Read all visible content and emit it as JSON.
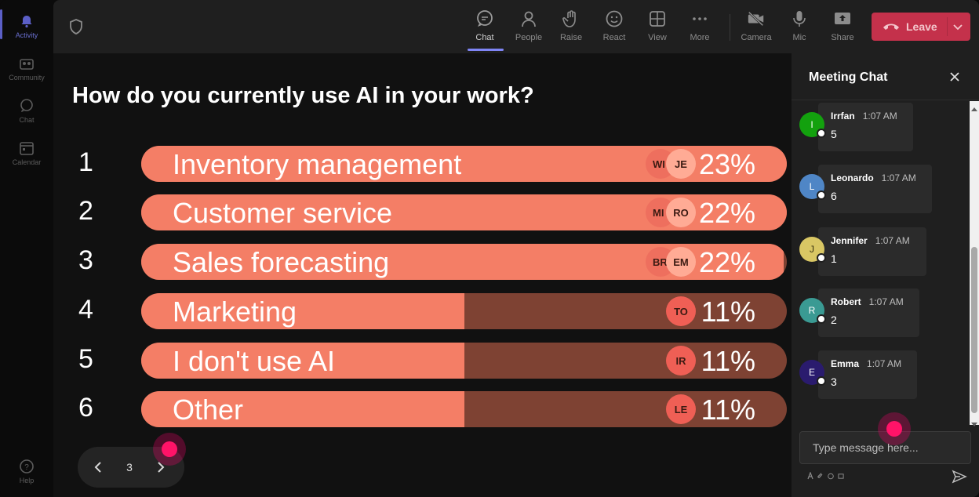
{
  "rail": {
    "items": [
      {
        "label": "Activity",
        "icon": "bell-icon"
      },
      {
        "label": "Community",
        "icon": "community-icon"
      },
      {
        "label": "Chat",
        "icon": "chat-icon"
      },
      {
        "label": "Calendar",
        "icon": "calendar-icon"
      }
    ],
    "help": {
      "label": "Help",
      "icon": "help-icon"
    }
  },
  "toolbar": {
    "chat": "Chat",
    "people": "People",
    "raise": "Raise",
    "react": "React",
    "view": "View",
    "more": "More",
    "camera": "Camera",
    "mic": "Mic",
    "share": "Share",
    "leave": "Leave"
  },
  "poll": {
    "question": "How do you currently use AI in your work?",
    "options": [
      {
        "num": "1",
        "label": "Inventory management",
        "pct_text": "23%",
        "pct": 100,
        "avatars": [
          "WI",
          "JE"
        ]
      },
      {
        "num": "2",
        "label": "Customer service",
        "pct_text": "22%",
        "pct": 100,
        "avatars": [
          "MI",
          "RO"
        ]
      },
      {
        "num": "3",
        "label": "Sales forecasting",
        "pct_text": "22%",
        "pct": 99.5,
        "avatars": [
          "BR",
          "EM"
        ]
      },
      {
        "num": "4",
        "label": "Marketing",
        "pct_text": "11%",
        "pct": 50,
        "avatars": [
          "TO"
        ]
      },
      {
        "num": "5",
        "label": "I don't use AI",
        "pct_text": "11%",
        "pct": 50,
        "avatars": [
          "IR"
        ]
      },
      {
        "num": "6",
        "label": "Other",
        "pct_text": "11%",
        "pct": 50,
        "avatars": [
          "LE"
        ]
      }
    ],
    "page": "3"
  },
  "chat": {
    "title": "Meeting Chat",
    "messages": [
      {
        "initial": "I",
        "author": "Irrfan",
        "time": "1:07 AM",
        "text": "5",
        "color": "#13a10e"
      },
      {
        "initial": "L",
        "author": "Leonardo",
        "time": "1:07 AM",
        "text": "6",
        "color": "#4f86c6"
      },
      {
        "initial": "J",
        "author": "Jennifer",
        "time": "1:07 AM",
        "text": "1",
        "color": "#d9c764"
      },
      {
        "initial": "R",
        "author": "Robert",
        "time": "1:07 AM",
        "text": "2",
        "color": "#3a9a93"
      },
      {
        "initial": "E",
        "author": "Emma",
        "time": "1:07 AM",
        "text": "3",
        "color": "#2a1b6e"
      }
    ],
    "placeholder": "Type message here..."
  }
}
